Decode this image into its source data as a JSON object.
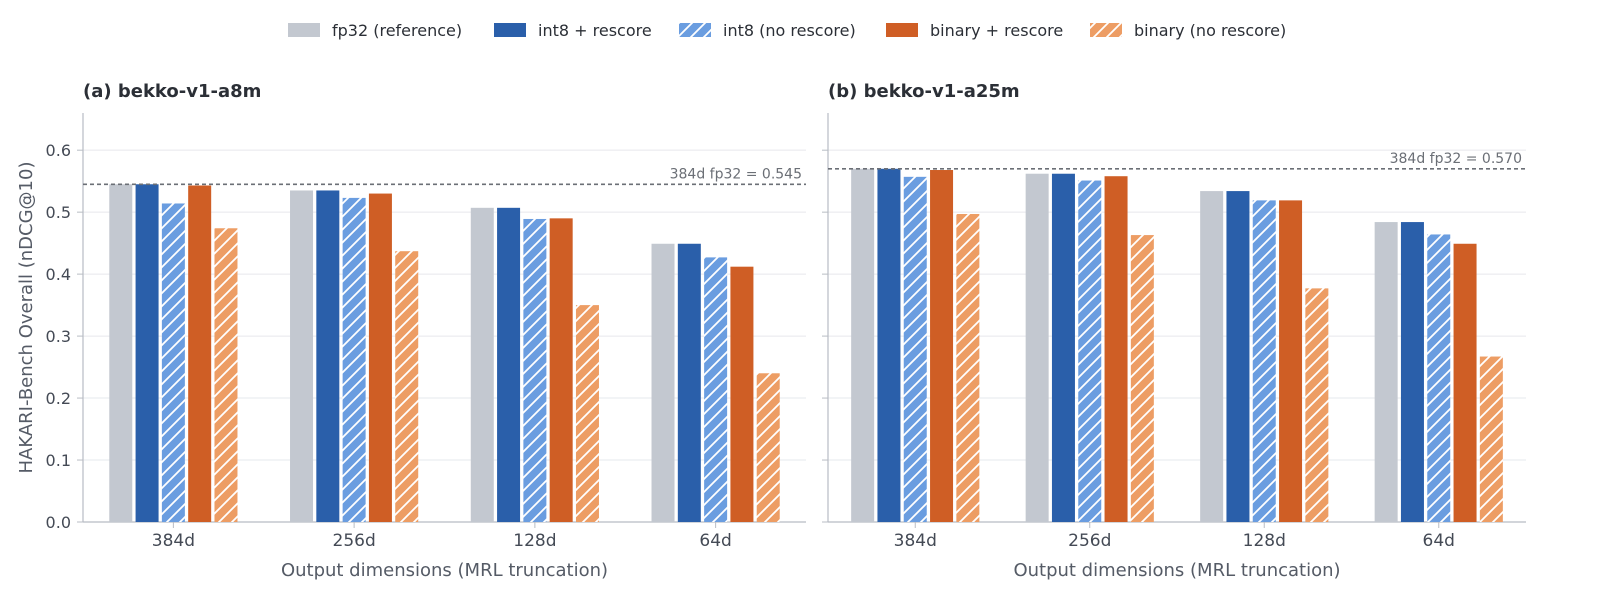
{
  "chart_data": {
    "type": "bar",
    "legend_position": "top-center",
    "grid": true,
    "series_styles": [
      {
        "name": "fp32 (reference)",
        "color": "#c3c8d0",
        "hatch": false
      },
      {
        "name": "int8 + rescore",
        "color": "#2a5faa",
        "hatch": false
      },
      {
        "name": "int8 (no rescore)",
        "color": "#6a9de0",
        "hatch": true
      },
      {
        "name": "binary + rescore",
        "color": "#cf5e25",
        "hatch": false
      },
      {
        "name": "binary (no rescore)",
        "color": "#ed9d64",
        "hatch": true
      }
    ],
    "ylabel": "HAKARI-Bench Overall (nDCG@10)",
    "xlabel": "Output dimensions (MRL truncation)",
    "ylim": [
      0,
      0.66
    ],
    "yticks": [
      "0.0",
      "0.1",
      "0.2",
      "0.3",
      "0.4",
      "0.5",
      "0.6"
    ],
    "panels": [
      {
        "title": "(a) bekko-v1-a8m",
        "categories": [
          "384d",
          "256d",
          "128d",
          "64d"
        ],
        "reference": {
          "value": 0.545,
          "label": "384d fp32 = 0.545"
        },
        "series": [
          {
            "name": "fp32 (reference)",
            "values": [
              0.545,
              0.535,
              0.507,
              0.449
            ]
          },
          {
            "name": "int8 + rescore",
            "values": [
              0.545,
              0.535,
              0.507,
              0.449
            ]
          },
          {
            "name": "int8 (no rescore)",
            "values": [
              0.514,
              0.523,
              0.489,
              0.427
            ]
          },
          {
            "name": "binary + rescore",
            "values": [
              0.543,
              0.53,
              0.49,
              0.412
            ]
          },
          {
            "name": "binary (no rescore)",
            "values": [
              0.474,
              0.437,
              0.35,
              0.24
            ]
          }
        ]
      },
      {
        "title": "(b) bekko-v1-a25m",
        "categories": [
          "384d",
          "256d",
          "128d",
          "64d"
        ],
        "reference": {
          "value": 0.57,
          "label": "384d fp32 = 0.570"
        },
        "series": [
          {
            "name": "fp32 (reference)",
            "values": [
              0.57,
              0.562,
              0.534,
              0.484
            ]
          },
          {
            "name": "int8 + rescore",
            "values": [
              0.57,
              0.562,
              0.534,
              0.484
            ]
          },
          {
            "name": "int8 (no rescore)",
            "values": [
              0.557,
              0.551,
              0.519,
              0.464
            ]
          },
          {
            "name": "binary + rescore",
            "values": [
              0.568,
              0.558,
              0.519,
              0.449
            ]
          },
          {
            "name": "binary (no rescore)",
            "values": [
              0.497,
              0.463,
              0.377,
              0.267
            ]
          }
        ]
      }
    ]
  }
}
